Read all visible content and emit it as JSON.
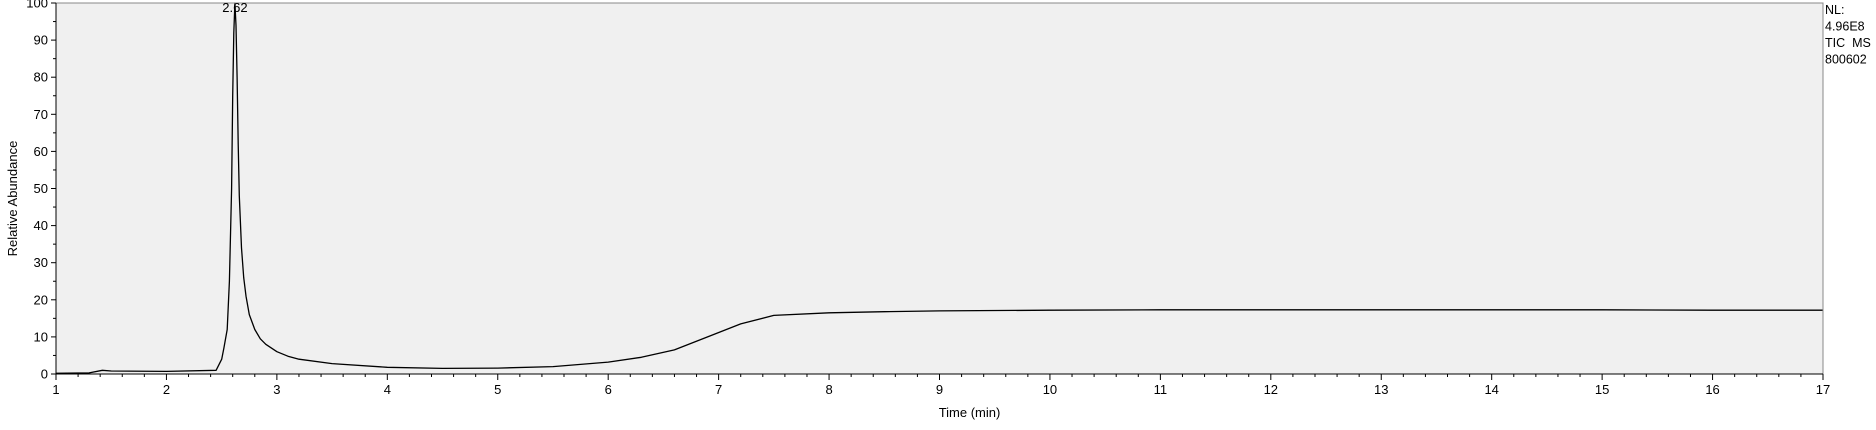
{
  "chart_data": {
    "type": "line",
    "title": "",
    "xlabel": "Time (min)",
    "ylabel": "Relative Abundance",
    "xlim": [
      1,
      17
    ],
    "ylim": [
      0,
      100
    ],
    "x_ticks": [
      1,
      2,
      3,
      4,
      5,
      6,
      7,
      8,
      9,
      10,
      11,
      12,
      13,
      14,
      15,
      16,
      17
    ],
    "y_ticks": [
      0,
      10,
      20,
      30,
      40,
      50,
      60,
      70,
      80,
      90,
      100
    ],
    "grid": false,
    "background_color": "#f0f0f0",
    "line_color": "#000000",
    "peak_annotation": {
      "x": 2.62,
      "y": 100,
      "label": "2.62"
    },
    "info_lines": [
      "NL:",
      "4.96E8",
      "TIC  MS",
      "800602"
    ],
    "series": [
      {
        "x": [
          1.0,
          1.3,
          1.42,
          1.5,
          2.0,
          2.45,
          2.5,
          2.52,
          2.55,
          2.57,
          2.59,
          2.6,
          2.61,
          2.62,
          2.63,
          2.64,
          2.65,
          2.66,
          2.68,
          2.7,
          2.72,
          2.75,
          2.8,
          2.85,
          2.9,
          3.0,
          3.1,
          3.2,
          3.5,
          4.0,
          4.5,
          5.0,
          5.5,
          6.0,
          6.3,
          6.6,
          6.9,
          7.2,
          7.5,
          8.0,
          8.5,
          9.0,
          10.0,
          11.0,
          12.0,
          13.0,
          14.0,
          15.0,
          16.0,
          17.0
        ],
        "y": [
          0.2,
          0.3,
          1.0,
          0.8,
          0.7,
          1.0,
          4.0,
          7.0,
          12.0,
          25.0,
          50.0,
          75.0,
          92.0,
          100.0,
          94.0,
          80.0,
          62.0,
          48.0,
          34.0,
          26.0,
          21.0,
          16.0,
          12.0,
          9.5,
          8.0,
          6.0,
          4.8,
          4.0,
          2.8,
          1.8,
          1.5,
          1.6,
          2.0,
          3.2,
          4.5,
          6.5,
          10.0,
          13.5,
          15.8,
          16.5,
          16.8,
          17.0,
          17.2,
          17.3,
          17.3,
          17.3,
          17.3,
          17.3,
          17.2,
          17.2
        ]
      }
    ]
  }
}
